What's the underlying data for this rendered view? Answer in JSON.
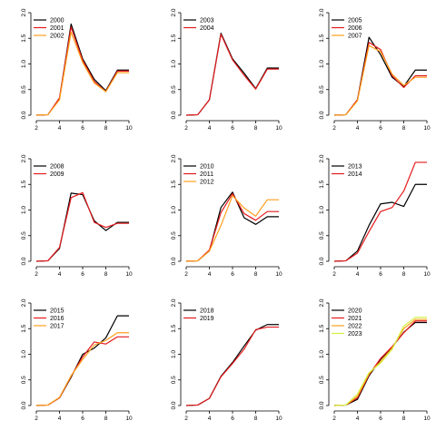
{
  "chart_data": [
    {
      "type": "line",
      "x": [
        2,
        3,
        4,
        5,
        6,
        7,
        8,
        9,
        10
      ],
      "xticks": [
        2,
        4,
        6,
        8,
        10
      ],
      "yticks": [
        0.0,
        0.5,
        1.0,
        1.5,
        2.0
      ],
      "ytick_labels": [
        "0.0",
        "0.5",
        "1.0",
        "1.5",
        "2.0"
      ],
      "xlim": [
        2,
        10
      ],
      "ylim": [
        0,
        2
      ],
      "legend": "top-left",
      "series": [
        {
          "name": "2000",
          "color": "#000000",
          "values": [
            0.0,
            0.01,
            0.32,
            1.78,
            1.1,
            0.7,
            0.48,
            0.88,
            0.88
          ]
        },
        {
          "name": "2001",
          "color": "#e41a1c",
          "values": [
            0.0,
            0.01,
            0.34,
            1.72,
            1.07,
            0.66,
            0.46,
            0.86,
            0.86
          ]
        },
        {
          "name": "2002",
          "color": "#ff9f1c",
          "values": [
            0.0,
            0.01,
            0.3,
            1.62,
            1.03,
            0.63,
            0.46,
            0.83,
            0.83
          ]
        }
      ]
    },
    {
      "type": "line",
      "x": [
        2,
        3,
        4,
        5,
        6,
        7,
        8,
        9,
        10
      ],
      "xticks": [
        2,
        4,
        6,
        8,
        10
      ],
      "yticks": [
        0.0,
        0.5,
        1.0,
        1.5,
        2.0
      ],
      "ytick_labels": [
        "0.0",
        "0.5",
        "1.0",
        "1.5",
        "2.0"
      ],
      "xlim": [
        2,
        10
      ],
      "ylim": [
        0,
        2
      ],
      "legend": "top-left",
      "series": [
        {
          "name": "2003",
          "color": "#000000",
          "values": [
            0.0,
            0.01,
            0.3,
            1.6,
            1.1,
            0.82,
            0.52,
            0.92,
            0.92
          ]
        },
        {
          "name": "2004",
          "color": "#e41a1c",
          "values": [
            0.0,
            0.01,
            0.3,
            1.58,
            1.08,
            0.78,
            0.51,
            0.9,
            0.9
          ]
        }
      ]
    },
    {
      "type": "line",
      "x": [
        2,
        3,
        4,
        5,
        6,
        7,
        8,
        9,
        10
      ],
      "xticks": [
        2,
        4,
        6,
        8,
        10
      ],
      "yticks": [
        0.0,
        0.5,
        1.0,
        1.5,
        2.0
      ],
      "ytick_labels": [
        "0.0",
        "0.5",
        "1.0",
        "1.5",
        "2.0"
      ],
      "xlim": [
        2,
        10
      ],
      "ylim": [
        0,
        2
      ],
      "legend": "top-left",
      "series": [
        {
          "name": "2005",
          "color": "#000000",
          "values": [
            0.0,
            0.01,
            0.3,
            1.52,
            1.18,
            0.74,
            0.56,
            0.88,
            0.88
          ]
        },
        {
          "name": "2006",
          "color": "#e41a1c",
          "values": [
            0.0,
            0.01,
            0.3,
            1.42,
            1.28,
            0.77,
            0.54,
            0.77,
            0.77
          ]
        },
        {
          "name": "2007",
          "color": "#ff9f1c",
          "values": [
            0.0,
            0.01,
            0.28,
            1.36,
            1.24,
            0.8,
            0.58,
            0.74,
            0.74
          ]
        }
      ]
    },
    {
      "type": "line",
      "x": [
        2,
        3,
        4,
        5,
        6,
        7,
        8,
        9,
        10
      ],
      "xticks": [
        2,
        4,
        6,
        8,
        10
      ],
      "yticks": [
        0.0,
        0.5,
        1.0,
        1.5,
        2.0
      ],
      "ytick_labels": [
        "0.0",
        "0.5",
        "1.0",
        "1.5",
        "2.0"
      ],
      "xlim": [
        2,
        10
      ],
      "ylim": [
        0,
        2
      ],
      "legend": "top-left",
      "series": [
        {
          "name": "2008",
          "color": "#000000",
          "values": [
            0.0,
            0.01,
            0.25,
            1.33,
            1.3,
            0.79,
            0.6,
            0.76,
            0.76
          ]
        },
        {
          "name": "2009",
          "color": "#e41a1c",
          "values": [
            0.0,
            0.01,
            0.27,
            1.24,
            1.34,
            0.76,
            0.66,
            0.74,
            0.74
          ]
        }
      ]
    },
    {
      "type": "line",
      "x": [
        2,
        3,
        4,
        5,
        6,
        7,
        8,
        9,
        10
      ],
      "xticks": [
        2,
        4,
        6,
        8,
        10
      ],
      "yticks": [
        0.0,
        0.5,
        1.0,
        1.5,
        2.0
      ],
      "ytick_labels": [
        "0.0",
        "0.5",
        "1.0",
        "1.5",
        "2.0"
      ],
      "xlim": [
        2,
        10
      ],
      "ylim": [
        0,
        2
      ],
      "legend": "top-left",
      "series": [
        {
          "name": "2010",
          "color": "#000000",
          "values": [
            0.0,
            0.01,
            0.2,
            1.05,
            1.35,
            0.85,
            0.72,
            0.87,
            0.87
          ]
        },
        {
          "name": "2011",
          "color": "#e41a1c",
          "values": [
            0.0,
            0.01,
            0.22,
            0.95,
            1.32,
            0.93,
            0.8,
            0.97,
            0.97
          ]
        },
        {
          "name": "2012",
          "color": "#ff9f1c",
          "values": [
            0.0,
            0.01,
            0.2,
            0.7,
            1.28,
            1.04,
            0.88,
            1.2,
            1.2
          ]
        }
      ]
    },
    {
      "type": "line",
      "x": [
        2,
        3,
        4,
        5,
        6,
        7,
        8,
        9,
        10
      ],
      "xticks": [
        2,
        4,
        6,
        8,
        10
      ],
      "yticks": [
        0.0,
        0.5,
        1.0,
        1.5,
        2.0
      ],
      "ytick_labels": [
        "0.0",
        "0.5",
        "1.0",
        "1.5",
        "2.0"
      ],
      "xlim": [
        2,
        10
      ],
      "ylim": [
        0,
        2
      ],
      "legend": "top-left",
      "series": [
        {
          "name": "2013",
          "color": "#000000",
          "values": [
            0.0,
            0.01,
            0.2,
            0.7,
            1.12,
            1.15,
            1.07,
            1.5,
            1.5
          ]
        },
        {
          "name": "2014",
          "color": "#e41a1c",
          "values": [
            0.0,
            0.01,
            0.16,
            0.58,
            0.97,
            1.05,
            1.37,
            1.93,
            1.93
          ]
        }
      ]
    },
    {
      "type": "line",
      "x": [
        2,
        3,
        4,
        5,
        6,
        7,
        8,
        9,
        10
      ],
      "xticks": [
        2,
        4,
        6,
        8,
        10
      ],
      "yticks": [
        0.0,
        0.5,
        1.0,
        1.5,
        2.0
      ],
      "ytick_labels": [
        "0.0",
        "0.5",
        "1.0",
        "1.5",
        "2.0"
      ],
      "xlim": [
        2,
        10
      ],
      "ylim": [
        0,
        2
      ],
      "legend": "top-left",
      "series": [
        {
          "name": "2015",
          "color": "#000000",
          "values": [
            0.0,
            0.01,
            0.15,
            0.55,
            1.0,
            1.12,
            1.32,
            1.75,
            1.75
          ]
        },
        {
          "name": "2016",
          "color": "#e41a1c",
          "values": [
            0.0,
            0.01,
            0.15,
            0.57,
            0.95,
            1.24,
            1.2,
            1.34,
            1.34
          ]
        },
        {
          "name": "2017",
          "color": "#ff9f1c",
          "values": [
            0.0,
            0.01,
            0.16,
            0.58,
            0.9,
            1.18,
            1.27,
            1.42,
            1.42
          ]
        }
      ]
    },
    {
      "type": "line",
      "x": [
        2,
        3,
        4,
        5,
        6,
        7,
        8,
        9,
        10
      ],
      "xticks": [
        2,
        4,
        6,
        8,
        10
      ],
      "yticks": [
        0.0,
        0.5,
        1.0,
        1.5,
        2.0
      ],
      "ytick_labels": [
        "0.0",
        "0.5",
        "1.0",
        "1.5",
        "2.0"
      ],
      "xlim": [
        2,
        10
      ],
      "ylim": [
        0,
        2
      ],
      "legend": "top-left",
      "series": [
        {
          "name": "2018",
          "color": "#000000",
          "values": [
            0.0,
            0.01,
            0.14,
            0.57,
            0.84,
            1.16,
            1.47,
            1.58,
            1.58
          ]
        },
        {
          "name": "2019",
          "color": "#e41a1c",
          "values": [
            0.0,
            0.01,
            0.14,
            0.56,
            0.82,
            1.1,
            1.48,
            1.53,
            1.53
          ]
        }
      ]
    },
    {
      "type": "line",
      "x": [
        2,
        3,
        4,
        5,
        6,
        7,
        8,
        9,
        10
      ],
      "xticks": [
        2,
        4,
        6,
        8,
        10
      ],
      "yticks": [
        0.0,
        0.5,
        1.0,
        1.5,
        2.0
      ],
      "ytick_labels": [
        "0.0",
        "0.5",
        "1.0",
        "1.5",
        "2.0"
      ],
      "xlim": [
        2,
        10
      ],
      "ylim": [
        0,
        2
      ],
      "legend": "top-left",
      "series": [
        {
          "name": "2020",
          "color": "#000000",
          "values": [
            0.0,
            0.01,
            0.12,
            0.58,
            0.9,
            1.14,
            1.43,
            1.62,
            1.62
          ]
        },
        {
          "name": "2021",
          "color": "#e41a1c",
          "values": [
            0.0,
            0.01,
            0.15,
            0.6,
            0.92,
            1.15,
            1.42,
            1.65,
            1.65
          ]
        },
        {
          "name": "2022",
          "color": "#ff9f1c",
          "values": [
            0.0,
            0.01,
            0.18,
            0.62,
            0.86,
            1.12,
            1.5,
            1.68,
            1.68
          ]
        },
        {
          "name": "2023",
          "color": "#d4f03c",
          "values": [
            0.0,
            0.01,
            0.22,
            0.64,
            0.83,
            1.1,
            1.55,
            1.72,
            1.72
          ]
        }
      ]
    }
  ]
}
